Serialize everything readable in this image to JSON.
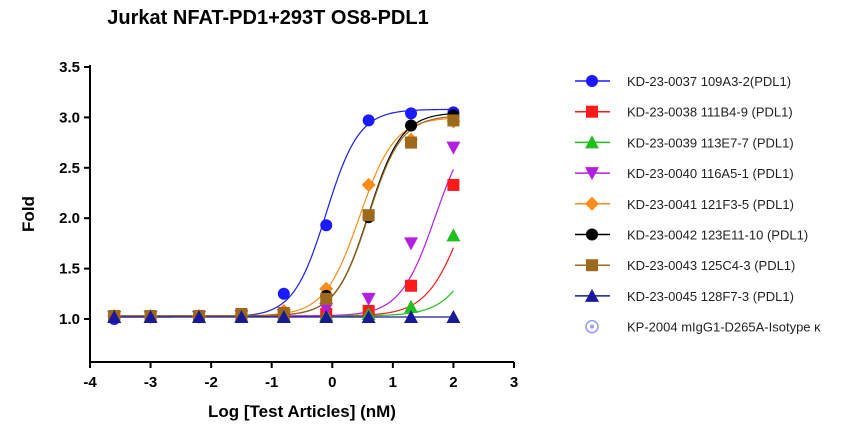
{
  "chart_data": {
    "type": "scatter",
    "title": "Jurkat NFAT-PD1+293T OS8-PDL1",
    "xlabel": "Log [Test Articles] (nM)",
    "ylabel": "Fold",
    "xlim": [
      -4,
      3
    ],
    "ylim": [
      0.75,
      3.5
    ],
    "x_ticks": [
      -4,
      -3,
      -2,
      -1,
      0,
      1,
      2,
      3
    ],
    "x_tick_labels": [
      "-4",
      "-3",
      "-2",
      "-1",
      "0",
      "1",
      "2",
      "3"
    ],
    "y_ticks": [
      1.0,
      1.5,
      2.0,
      2.5,
      3.0,
      3.5
    ],
    "y_tick_labels": [
      "1.0",
      "1.5",
      "2.0",
      "2.5",
      "3.0",
      "3.5"
    ],
    "grid": false,
    "legend_position": "right",
    "x": [
      -3.6,
      -3.0,
      -2.2,
      -1.5,
      -0.8,
      -0.1,
      0.6,
      1.3,
      2.0
    ],
    "series": [
      {
        "name": "KD-23-0037 109A3-2(PDL1)",
        "marker": "circle",
        "color": "#1a1aff",
        "values": [
          1.0,
          1.02,
          1.03,
          1.05,
          1.25,
          1.93,
          2.97,
          3.04,
          3.05
        ],
        "fit": {
          "bottom": 1.02,
          "top": 3.08,
          "logec50": -0.1,
          "hill": 1.6
        }
      },
      {
        "name": "KD-23-0038 111B4-9 (PDL1)",
        "marker": "square",
        "color": "#ff1a1a",
        "values": [
          1.02,
          1.02,
          1.02,
          1.03,
          1.03,
          1.05,
          1.08,
          1.33,
          2.33
        ],
        "fit": {
          "bottom": 1.03,
          "top": 3.0,
          "logec50": 2.2,
          "hill": 1.4
        }
      },
      {
        "name": "KD-23-0039 113E7-7 (PDL1)",
        "marker": "triangle-up",
        "color": "#1fbf1f",
        "values": [
          1.02,
          1.02,
          1.02,
          1.03,
          1.03,
          1.04,
          1.05,
          1.12,
          1.83
        ],
        "fit": {
          "bottom": 1.03,
          "top": 3.0,
          "logec50": 2.6,
          "hill": 1.4
        }
      },
      {
        "name": "KD-23-0040 116A5-1 (PDL1)",
        "marker": "triangle-down",
        "color": "#b21fe0",
        "values": [
          1.02,
          1.02,
          1.02,
          1.03,
          1.04,
          1.1,
          1.2,
          1.75,
          2.7
        ],
        "fit": {
          "bottom": 1.03,
          "top": 3.0,
          "logec50": 1.7,
          "hill": 1.5
        }
      },
      {
        "name": "KD-23-0041 121F3-5 (PDL1)",
        "marker": "diamond",
        "color": "#ff8c1a",
        "values": [
          1.03,
          1.03,
          1.03,
          1.04,
          1.08,
          1.3,
          2.33,
          2.78,
          2.96
        ],
        "fit": {
          "bottom": 1.03,
          "top": 3.0,
          "logec50": 0.45,
          "hill": 1.5
        }
      },
      {
        "name": "KD-23-0042 123E11-10 (PDL1)",
        "marker": "circle",
        "color": "#000000",
        "values": [
          1.02,
          1.02,
          1.03,
          1.03,
          1.05,
          1.23,
          2.01,
          2.92,
          3.02
        ],
        "fit": {
          "bottom": 1.03,
          "top": 3.05,
          "logec50": 0.6,
          "hill": 1.6
        }
      },
      {
        "name": "KD-23-0043 125C4-3 (PDL1)",
        "marker": "square",
        "color": "#9c6a1a",
        "values": [
          1.03,
          1.03,
          1.03,
          1.05,
          1.06,
          1.2,
          2.03,
          2.75,
          2.97
        ],
        "fit": {
          "bottom": 1.03,
          "top": 3.02,
          "logec50": 0.6,
          "hill": 1.6
        }
      },
      {
        "name": "KD-23-0045 128F7-3 (PDL1)",
        "marker": "triangle-up",
        "color": "#1a1a99",
        "values": [
          1.02,
          1.02,
          1.02,
          1.02,
          1.02,
          1.02,
          1.02,
          1.02,
          1.02
        ],
        "fit": {
          "bottom": 1.02,
          "top": 1.02,
          "logec50": 0.0,
          "hill": 1.0
        }
      },
      {
        "name": "KP-2004 mIgG1-D265A-Isotype κ",
        "marker": "circle-dot",
        "color": "#9a9af0",
        "values": [],
        "fit": null
      }
    ]
  }
}
